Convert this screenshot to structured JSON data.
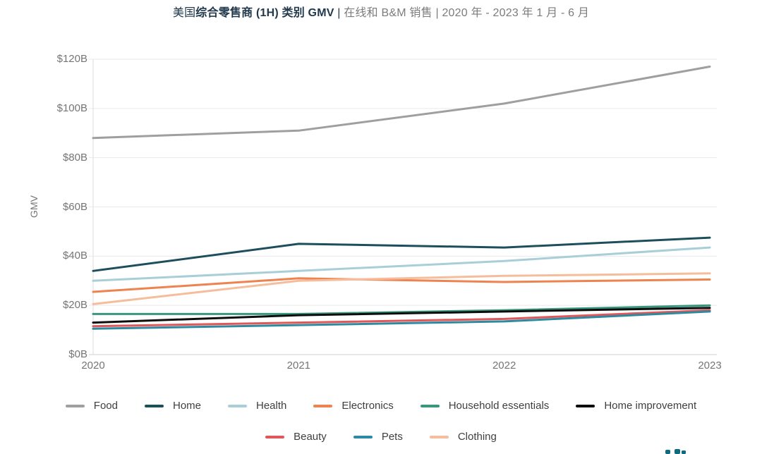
{
  "title": {
    "prefix": "美国",
    "bold": "综合零售商 (1H) 类别 GMV",
    "separator": " | ",
    "rest": "在线和 B&M 销售 | 2020 年 - 2023 年 1 月 - 6 月"
  },
  "y_axis": {
    "label": "GMV",
    "ticks": [
      "$0B",
      "$20B",
      "$40B",
      "$60B",
      "$80B",
      "$100B",
      "$120B"
    ]
  },
  "x_axis": {
    "ticks": [
      "2020",
      "2021",
      "2022",
      "2023"
    ]
  },
  "chart_data": {
    "type": "line",
    "title": "美国综合零售商 (1H) 类别 GMV | 在线和 B&M 销售 | 2020 年 - 2023 年 1 月 - 6 月",
    "x": [
      2020,
      2021,
      2022,
      2023
    ],
    "xlabel": "",
    "ylabel": "GMV",
    "ylim": [
      0,
      120
    ],
    "ytick_step": 20,
    "ytick_labels": [
      "$0B",
      "$20B",
      "$40B",
      "$60B",
      "$80B",
      "$100B",
      "$120B"
    ],
    "unit": "$B",
    "grid": true,
    "legend_position": "bottom",
    "legend_rows": [
      [
        "Food",
        "Home",
        "Health",
        "Electronics",
        "Household essentials",
        "Home improvement"
      ],
      [
        "Beauty",
        "Pets",
        "Clothing"
      ]
    ],
    "series": [
      {
        "name": "Food",
        "color": "#9f9f9f",
        "values": [
          88,
          91,
          102,
          117
        ]
      },
      {
        "name": "Home",
        "color": "#1d4e5c",
        "values": [
          34,
          45,
          43.5,
          47.5
        ]
      },
      {
        "name": "Health",
        "color": "#a9ced8",
        "values": [
          30,
          34,
          38,
          43.5
        ]
      },
      {
        "name": "Electronics",
        "color": "#ef8350",
        "values": [
          25.5,
          31,
          29.5,
          30.5
        ]
      },
      {
        "name": "Household essentials",
        "color": "#38967d",
        "values": [
          16.5,
          16.5,
          18,
          20
        ]
      },
      {
        "name": "Home improvement",
        "color": "#0d0d0d",
        "values": [
          13,
          16,
          17.5,
          19
        ]
      },
      {
        "name": "Beauty",
        "color": "#e15658",
        "values": [
          11.5,
          13,
          14.5,
          18
        ]
      },
      {
        "name": "Pets",
        "color": "#2e8aa0",
        "values": [
          10.5,
          12,
          13.5,
          17.5
        ]
      },
      {
        "name": "Clothing",
        "color": "#f5bd9c",
        "values": [
          20.5,
          30,
          32,
          33
        ]
      }
    ]
  },
  "watermark": {
    "description": "cropped teal logo mark at bottom-right",
    "color": "#0e6a7e"
  }
}
